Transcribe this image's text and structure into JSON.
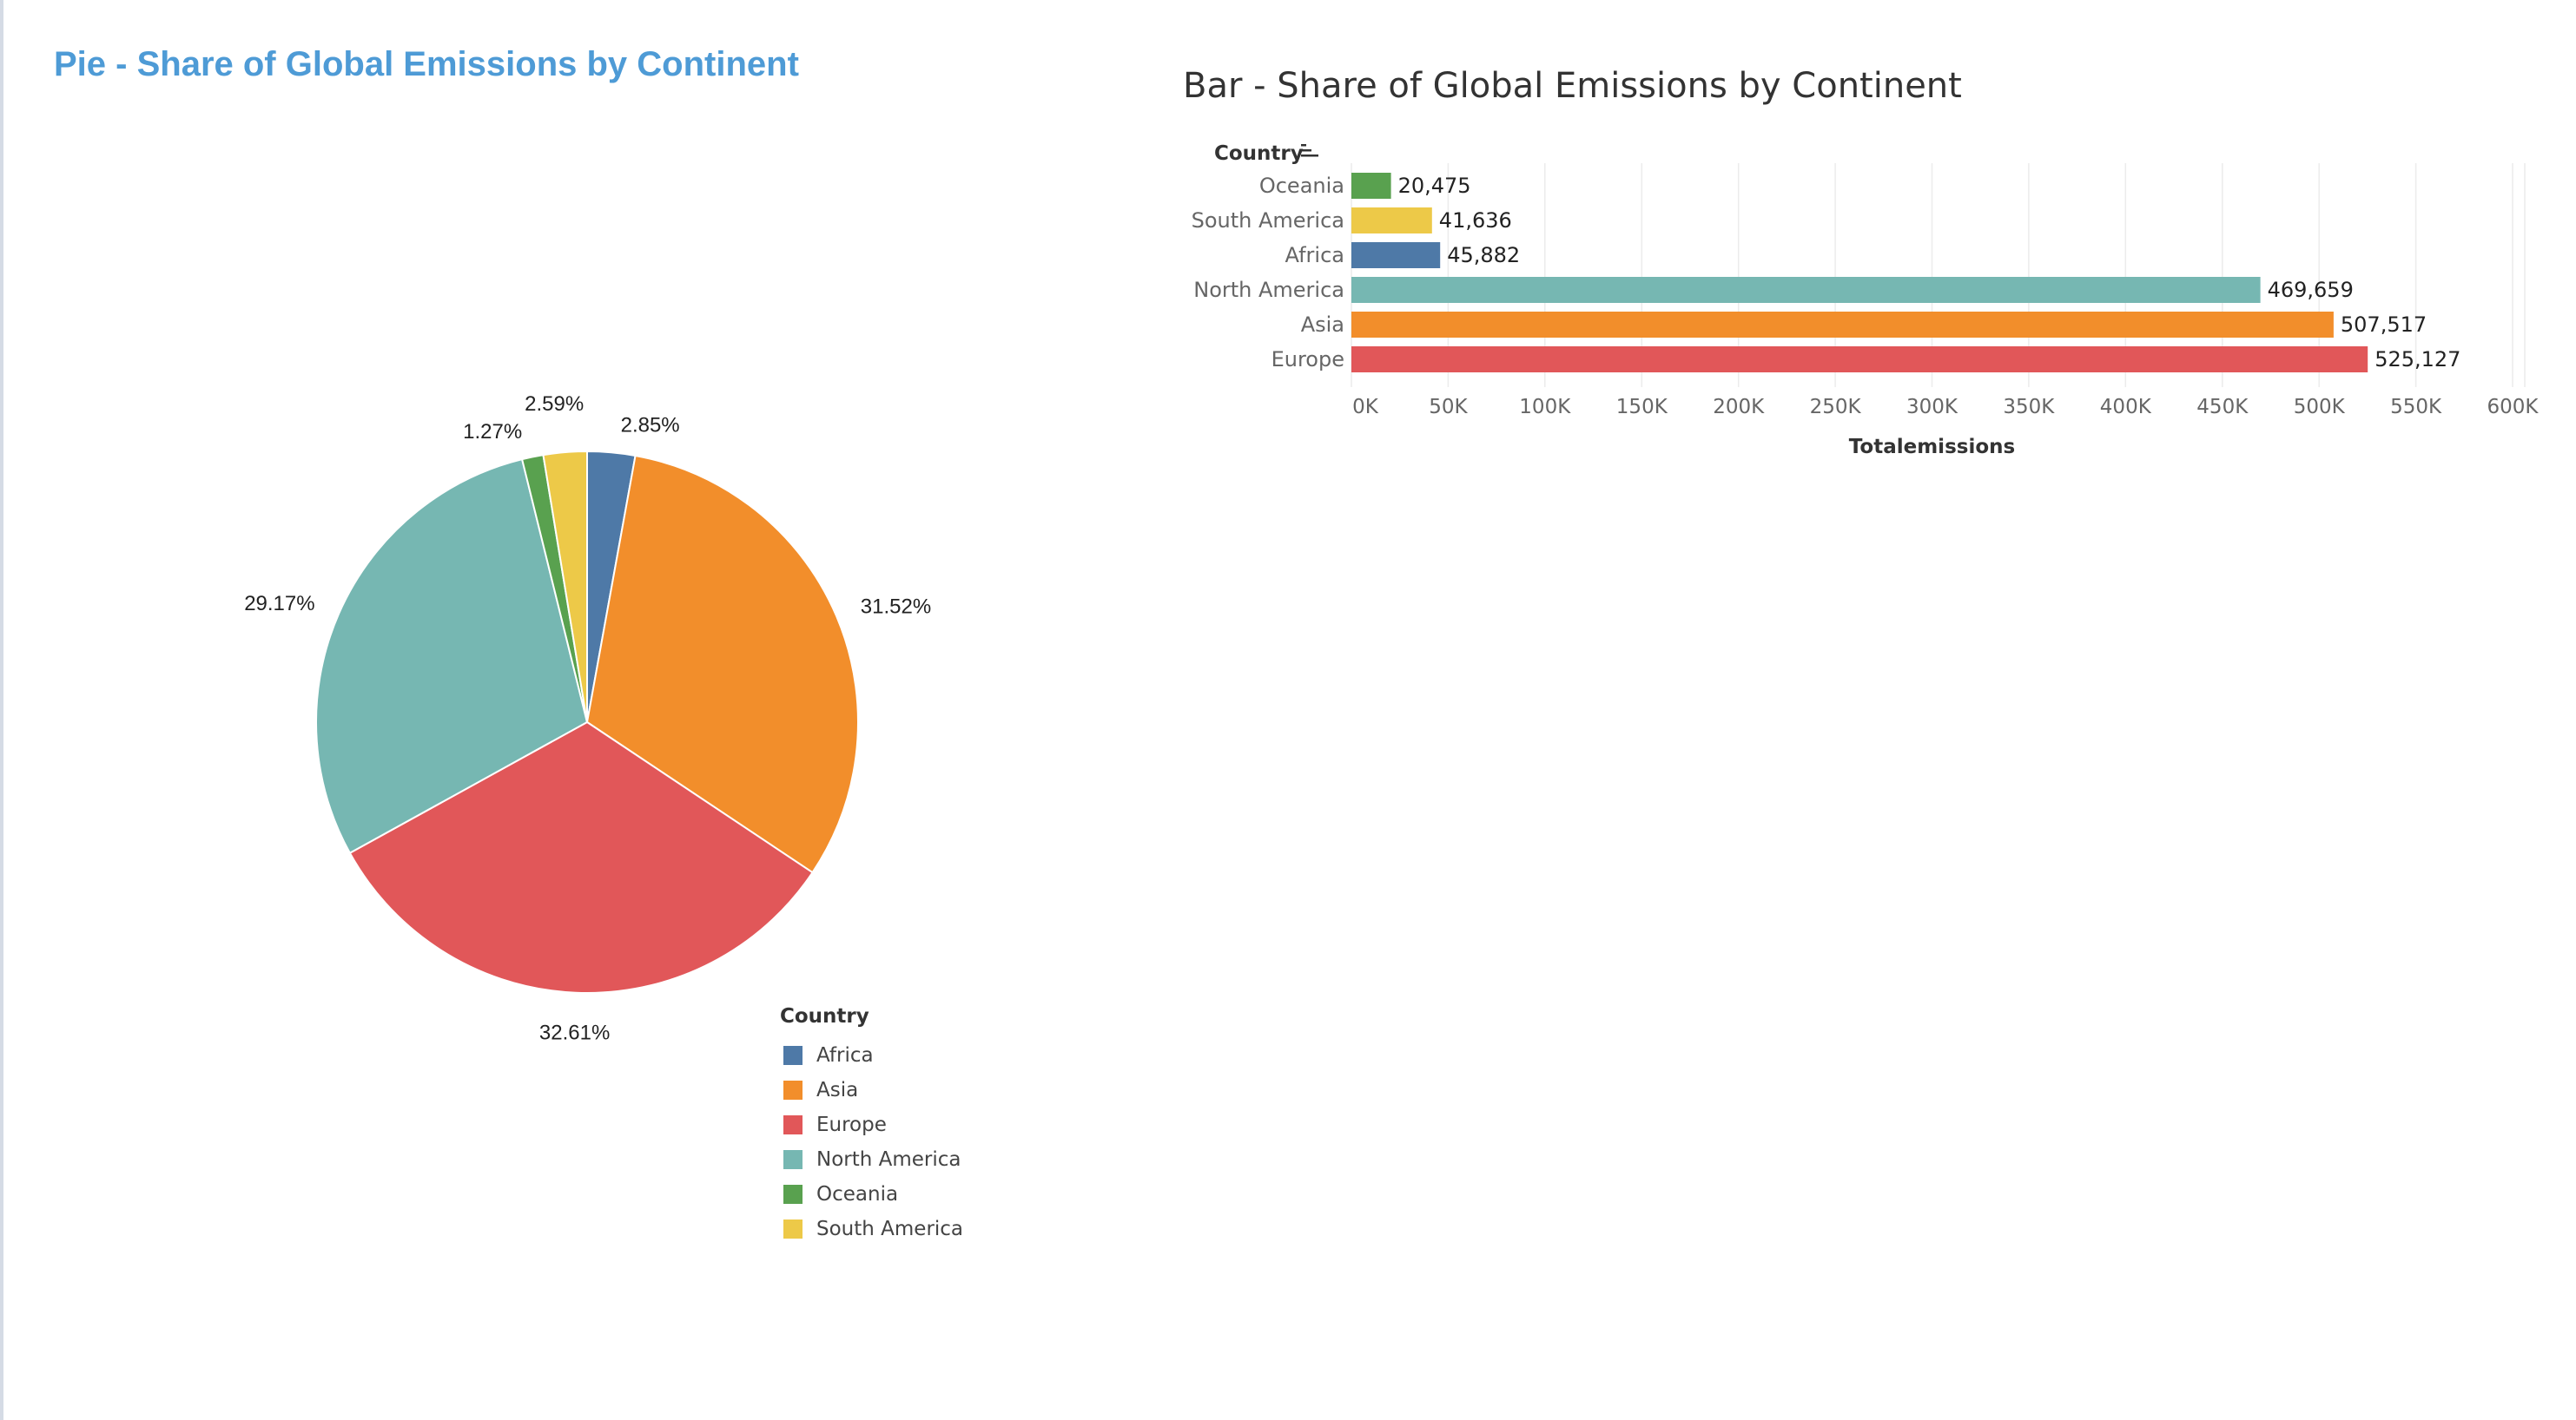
{
  "titles": {
    "pie": "Pie - Share of Global Emissions by Continent",
    "bar": "Bar - Share of Global Emissions by Continent"
  },
  "colors": {
    "Africa": "#4e79a7",
    "Asia": "#f28e2b",
    "Europe": "#e15759",
    "North America": "#76b7b2",
    "Oceania": "#59a14f",
    "South America": "#edc948",
    "title_blue": "#4e9bd6"
  },
  "legend": {
    "title": "Country",
    "items": [
      {
        "label": "Africa",
        "color": "#4e79a7"
      },
      {
        "label": "Asia",
        "color": "#f28e2b"
      },
      {
        "label": "Europe",
        "color": "#e15759"
      },
      {
        "label": "North America",
        "color": "#76b7b2"
      },
      {
        "label": "Oceania",
        "color": "#59a14f"
      },
      {
        "label": "South America",
        "color": "#edc948"
      }
    ]
  },
  "chart_data": [
    {
      "type": "pie",
      "title": "Pie - Share of Global Emissions by Continent",
      "slices": [
        {
          "label": "Africa",
          "value": 2.85,
          "display": "2.85%"
        },
        {
          "label": "Asia",
          "value": 31.52,
          "display": "31.52%"
        },
        {
          "label": "Europe",
          "value": 32.61,
          "display": "32.61%"
        },
        {
          "label": "North America",
          "value": 29.17,
          "display": "29.17%"
        },
        {
          "label": "Oceania",
          "value": 1.27,
          "display": "1.27%"
        },
        {
          "label": "South America",
          "value": 2.59,
          "display": "2.59%"
        }
      ],
      "legend": "right-bottom"
    },
    {
      "type": "bar",
      "orientation": "horizontal",
      "title": "Bar - Share of Global Emissions by Continent",
      "ylabel": "Country",
      "xlabel": "Totalemissions",
      "categories": [
        "Oceania",
        "South America",
        "Africa",
        "North America",
        "Asia",
        "Europe"
      ],
      "values": [
        20475,
        41636,
        45882,
        469659,
        507517,
        525127
      ],
      "value_labels": [
        "20,475",
        "41,636",
        "45,882",
        "469,659",
        "507,517",
        "525,127"
      ],
      "xlim": [
        0,
        600000
      ],
      "ticks": [
        {
          "value": 0,
          "label": "0K"
        },
        {
          "value": 50000,
          "label": "50K"
        },
        {
          "value": 100000,
          "label": "100K"
        },
        {
          "value": 150000,
          "label": "150K"
        },
        {
          "value": 200000,
          "label": "200K"
        },
        {
          "value": 250000,
          "label": "250K"
        },
        {
          "value": 300000,
          "label": "300K"
        },
        {
          "value": 350000,
          "label": "350K"
        },
        {
          "value": 400000,
          "label": "400K"
        },
        {
          "value": 450000,
          "label": "450K"
        },
        {
          "value": 500000,
          "label": "500K"
        },
        {
          "value": 550000,
          "label": "550K"
        },
        {
          "value": 600000,
          "label": "600K"
        }
      ],
      "grid": true
    }
  ]
}
